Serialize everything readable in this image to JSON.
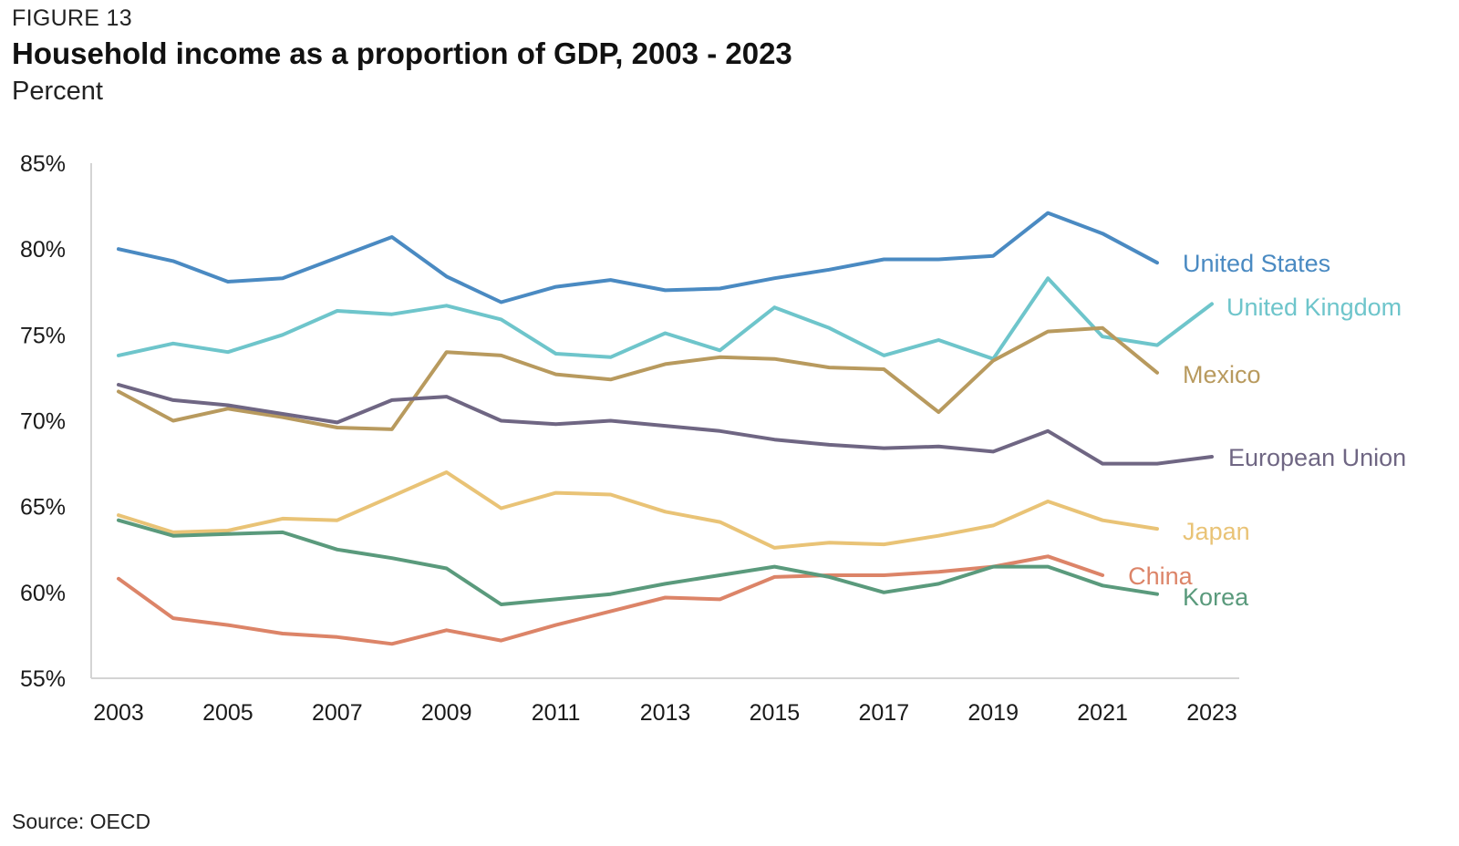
{
  "header": {
    "figure_label": "FIGURE 13",
    "title": "Household income as a proportion of GDP, 2003 - 2023",
    "subtitle": "Percent"
  },
  "footer": {
    "source": "Source: OECD"
  },
  "chart_data": {
    "type": "line",
    "title": "Household income as a proportion of GDP, 2003 - 2023",
    "ylabel": "Percent",
    "xlim": [
      2003,
      2023
    ],
    "ylim": [
      55,
      85
    ],
    "x_ticks": [
      2003,
      2005,
      2007,
      2009,
      2011,
      2013,
      2015,
      2017,
      2019,
      2021,
      2023
    ],
    "y_ticks": [
      {
        "value": 55,
        "label": "55%"
      },
      {
        "value": 60,
        "label": "60%"
      },
      {
        "value": 65,
        "label": "65%"
      },
      {
        "value": 70,
        "label": "70%"
      },
      {
        "value": 75,
        "label": "75%"
      },
      {
        "value": 80,
        "label": "80%"
      },
      {
        "value": 85,
        "label": "85%"
      }
    ],
    "grid": false,
    "legend": "direct labels at line ends",
    "series": [
      {
        "name": "United States",
        "color": "#4a8ac2",
        "x": [
          2003,
          2004,
          2005,
          2006,
          2007,
          2008,
          2009,
          2010,
          2011,
          2012,
          2013,
          2014,
          2015,
          2016,
          2017,
          2018,
          2019,
          2020,
          2021,
          2022
        ],
        "values": [
          80.0,
          79.3,
          78.1,
          78.3,
          79.5,
          80.7,
          78.4,
          76.9,
          77.8,
          78.2,
          77.6,
          77.7,
          78.3,
          78.8,
          79.4,
          79.4,
          79.6,
          82.1,
          80.9,
          79.2
        ]
      },
      {
        "name": "United Kingdom",
        "color": "#6ec5cb",
        "x": [
          2003,
          2004,
          2005,
          2006,
          2007,
          2008,
          2009,
          2010,
          2011,
          2012,
          2013,
          2014,
          2015,
          2016,
          2017,
          2018,
          2019,
          2020,
          2021,
          2022,
          2023
        ],
        "values": [
          73.8,
          74.5,
          74.0,
          75.0,
          76.4,
          76.2,
          76.7,
          75.9,
          73.9,
          73.7,
          75.1,
          74.1,
          76.6,
          75.4,
          73.8,
          74.7,
          73.6,
          78.3,
          74.9,
          74.4,
          76.8
        ]
      },
      {
        "name": "Mexico",
        "color": "#b89a5e",
        "x": [
          2003,
          2004,
          2005,
          2006,
          2007,
          2008,
          2009,
          2010,
          2011,
          2012,
          2013,
          2014,
          2015,
          2016,
          2017,
          2018,
          2019,
          2020,
          2021,
          2022
        ],
        "values": [
          71.7,
          70.0,
          70.7,
          70.2,
          69.6,
          69.5,
          74.0,
          73.8,
          72.7,
          72.4,
          73.3,
          73.7,
          73.6,
          73.1,
          73.0,
          70.5,
          73.5,
          75.2,
          75.4,
          72.8
        ]
      },
      {
        "name": "European Union",
        "color": "#6f6683",
        "x": [
          2003,
          2004,
          2005,
          2006,
          2007,
          2008,
          2009,
          2010,
          2011,
          2012,
          2013,
          2014,
          2015,
          2016,
          2017,
          2018,
          2019,
          2020,
          2021,
          2022,
          2023
        ],
        "values": [
          72.1,
          71.2,
          70.9,
          70.4,
          69.9,
          71.2,
          71.4,
          70.0,
          69.8,
          70.0,
          69.7,
          69.4,
          68.9,
          68.6,
          68.4,
          68.5,
          68.2,
          69.4,
          67.5,
          67.5,
          67.9
        ]
      },
      {
        "name": "Japan",
        "color": "#e9c376",
        "x": [
          2003,
          2004,
          2005,
          2006,
          2007,
          2008,
          2009,
          2010,
          2011,
          2012,
          2013,
          2014,
          2015,
          2016,
          2017,
          2018,
          2019,
          2020,
          2021,
          2022
        ],
        "values": [
          64.5,
          63.5,
          63.6,
          64.3,
          64.2,
          65.6,
          67.0,
          64.9,
          65.8,
          65.7,
          64.7,
          64.1,
          62.6,
          62.9,
          62.8,
          63.3,
          63.9,
          65.3,
          64.2,
          63.7
        ]
      },
      {
        "name": "China",
        "color": "#dc8468",
        "x": [
          2003,
          2004,
          2005,
          2006,
          2007,
          2008,
          2009,
          2010,
          2011,
          2012,
          2013,
          2014,
          2015,
          2016,
          2017,
          2018,
          2019,
          2020,
          2021
        ],
        "values": [
          60.8,
          58.5,
          58.1,
          57.6,
          57.4,
          57.0,
          57.8,
          57.2,
          58.1,
          58.9,
          59.7,
          59.6,
          60.9,
          61.0,
          61.0,
          61.2,
          61.5,
          62.1,
          61.0
        ]
      },
      {
        "name": "Korea",
        "color": "#5a9a7c",
        "x": [
          2003,
          2004,
          2005,
          2006,
          2007,
          2008,
          2009,
          2010,
          2011,
          2012,
          2013,
          2014,
          2015,
          2016,
          2017,
          2018,
          2019,
          2020,
          2021,
          2022
        ],
        "values": [
          64.2,
          63.3,
          63.4,
          63.5,
          62.5,
          62.0,
          61.4,
          59.3,
          59.6,
          59.9,
          60.5,
          61.0,
          61.5,
          60.9,
          60.0,
          60.5,
          61.5,
          61.5,
          60.4,
          59.9
        ]
      }
    ]
  }
}
